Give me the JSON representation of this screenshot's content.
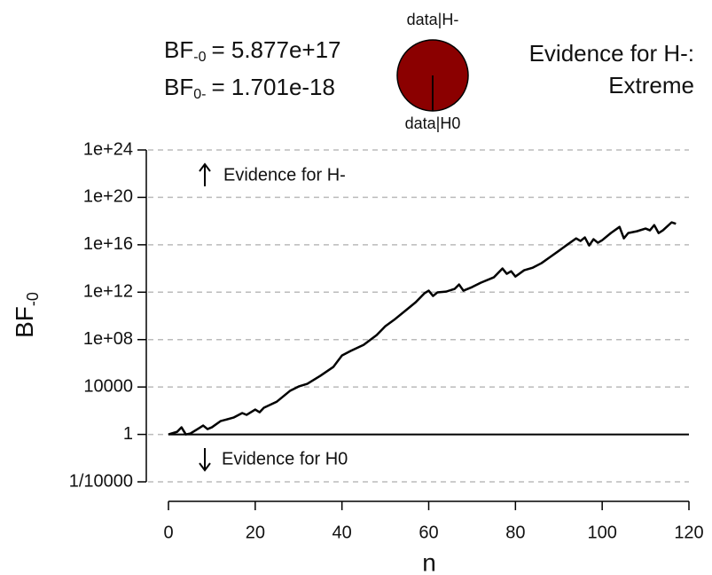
{
  "header": {
    "bf_alt": {
      "symbol": "BF",
      "subscript": "-0",
      "value_text": "= 5.877e+17"
    },
    "bf_null": {
      "symbol": "BF",
      "subscript": "0-",
      "value_text": "= 1.701e-18"
    },
    "evidence_for": "Evidence for H-:",
    "evidence_strength": "Extreme"
  },
  "chart_data": [
    {
      "type": "line",
      "xlabel": "n",
      "ylabel": "BF",
      "ylabel_subscript": "-0",
      "color": "#000000",
      "log_y": true,
      "grid": true,
      "hline": 1,
      "annotations": [
        "Evidence for H-",
        "Evidence for H0"
      ],
      "x": [
        0,
        2,
        3,
        4,
        5,
        7,
        8,
        9,
        10,
        12,
        15,
        17,
        18,
        20,
        21,
        22,
        25,
        28,
        30,
        32,
        35,
        38,
        40,
        42,
        45,
        48,
        50,
        52,
        55,
        57,
        59,
        60,
        61,
        62,
        64,
        66,
        67,
        68,
        70,
        72,
        75,
        77,
        78,
        79,
        80,
        82,
        84,
        86,
        88,
        90,
        92,
        94,
        95,
        96,
        97,
        98,
        99,
        100,
        102,
        104,
        105,
        106,
        108,
        110,
        111,
        112,
        113,
        114,
        116,
        117
      ],
      "values": [
        1,
        1.66,
        3.98,
        1,
        1.17,
        3.31,
        5.62,
        2.82,
        3.98,
        13.2,
        26.3,
        63.1,
        44.7,
        126,
        74.1,
        178,
        589,
        4680.0,
        11000.0,
        18600.0,
        87100.0,
        490000.0,
        4570000.0,
        11000000.0,
        36300000.0,
        240000000.0,
        1350000000.0,
        4570000000.0,
        35500000000.0,
        141000000000.0,
        794000000000.0,
        1350000000000.0,
        479000000000.0,
        955000000000.0,
        1120000000000.0,
        1910000000000.0,
        4470000000000.0,
        1350000000000.0,
        2690000000000.0,
        6310000000000.0,
        17800000000000.0,
        100000000000000.0,
        35500000000000.0,
        58900000000000.0,
        20900000000000.0,
        70800000000000.0,
        117000000000000.0,
        282000000000000.0,
        933000000000000.0,
        3090000000000000.0,
        1.05e+16,
        3.47e+16,
        2.09e+16,
        4.17e+16,
        8710000000000000.0,
        2.95e+16,
        1.48e+16,
        2.45e+16,
        9.77e+16,
        3.24e+17,
        3.47e+16,
        9.77e+16,
        1.38e+17,
        2.34e+17,
        1.66e+17,
        4.57e+17,
        9.77e+16,
        1.66e+17,
        7.76e+17,
        5.877e+17
      ],
      "xlim": [
        0,
        120
      ],
      "xticks": [
        0,
        20,
        40,
        60,
        80,
        100,
        120
      ],
      "ylim": [
        0.0001,
        1e+24
      ],
      "yticks": [
        {
          "value": 0.0001,
          "label": "1/10000"
        },
        1,
        10000,
        {
          "value": 100000000.0,
          "label": "1e+08"
        },
        {
          "value": 1000000000000.0,
          "label": "1e+12"
        },
        {
          "value": 1e+16,
          "label": "1e+16"
        },
        {
          "value": 1e+20,
          "label": "1e+20"
        },
        {
          "value": 1e+24,
          "label": "1e+24"
        }
      ]
    },
    {
      "type": "pie",
      "categories": [
        "data|H-",
        "data|H0"
      ],
      "values": [
        1,
        1.701e-18
      ],
      "colors": [
        "#8b0000",
        "#ffffff"
      ]
    }
  ]
}
